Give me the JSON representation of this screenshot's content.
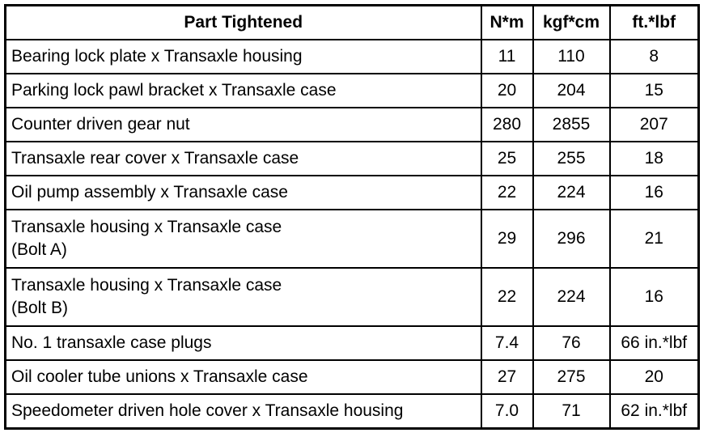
{
  "table": {
    "header": [
      "Part Tightened",
      "N*m",
      "kgf*cm",
      "ft.*lbf"
    ],
    "rows": [
      [
        "Bearing lock plate x Transaxle housing",
        "11",
        "110",
        "8"
      ],
      [
        "Parking lock pawl bracket x Transaxle case",
        "20",
        "204",
        "15"
      ],
      [
        "Counter driven gear nut",
        "280",
        "2855",
        "207"
      ],
      [
        "Transaxle rear cover x Transaxle case",
        "25",
        "255",
        "18"
      ],
      [
        "Oil pump assembly x Transaxle case",
        "22",
        "224",
        "16"
      ],
      [
        "Transaxle housing x Transaxle case\n(Bolt A)",
        "29",
        "296",
        "21"
      ],
      [
        "Transaxle housing x Transaxle case\n(Bolt B)",
        "22",
        "224",
        "16"
      ],
      [
        "No. 1 transaxle case plugs",
        "7.4",
        "76",
        "66 in.*lbf"
      ],
      [
        "Oil cooler tube unions x Transaxle case",
        "27",
        "275",
        "20"
      ],
      [
        "Speedometer driven hole cover x Transaxle housing",
        "7.0",
        "71",
        "62 in.*lbf"
      ]
    ]
  }
}
